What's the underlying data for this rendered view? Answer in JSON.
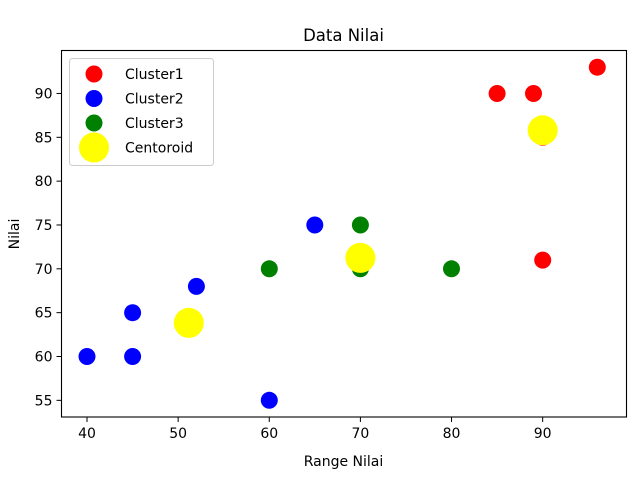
{
  "chart_data": {
    "type": "scatter",
    "title": "Data Nilai",
    "xlabel": "Range Nilai",
    "ylabel": "Nilai",
    "xlim": [
      37.2,
      99.2
    ],
    "ylim": [
      53.1,
      94.9
    ],
    "xticks": [
      40,
      50,
      60,
      70,
      80,
      90
    ],
    "yticks": [
      55,
      60,
      65,
      70,
      75,
      80,
      85,
      90
    ],
    "grid": false,
    "legend_position": "upper left",
    "series": [
      {
        "name": "Cluster1",
        "color": "#ff0000",
        "marker_size": "small",
        "points": [
          [
            85,
            90
          ],
          [
            89,
            90
          ],
          [
            96,
            93
          ],
          [
            90,
            85
          ],
          [
            90,
            71
          ]
        ]
      },
      {
        "name": "Cluster2",
        "color": "#0000ff",
        "marker_size": "small",
        "points": [
          [
            40,
            60
          ],
          [
            45,
            65
          ],
          [
            45,
            60
          ],
          [
            52,
            68
          ],
          [
            60,
            55
          ],
          [
            65,
            75
          ]
        ]
      },
      {
        "name": "Cluster3",
        "color": "#008000",
        "marker_size": "small",
        "points": [
          [
            60,
            70
          ],
          [
            70,
            75
          ],
          [
            70,
            70
          ],
          [
            80,
            70
          ]
        ]
      },
      {
        "name": "Centoroid",
        "color": "#ffff00",
        "marker_size": "large",
        "points": [
          [
            90,
            85.8
          ],
          [
            51.17,
            63.83
          ],
          [
            70,
            71.25
          ]
        ]
      }
    ]
  }
}
